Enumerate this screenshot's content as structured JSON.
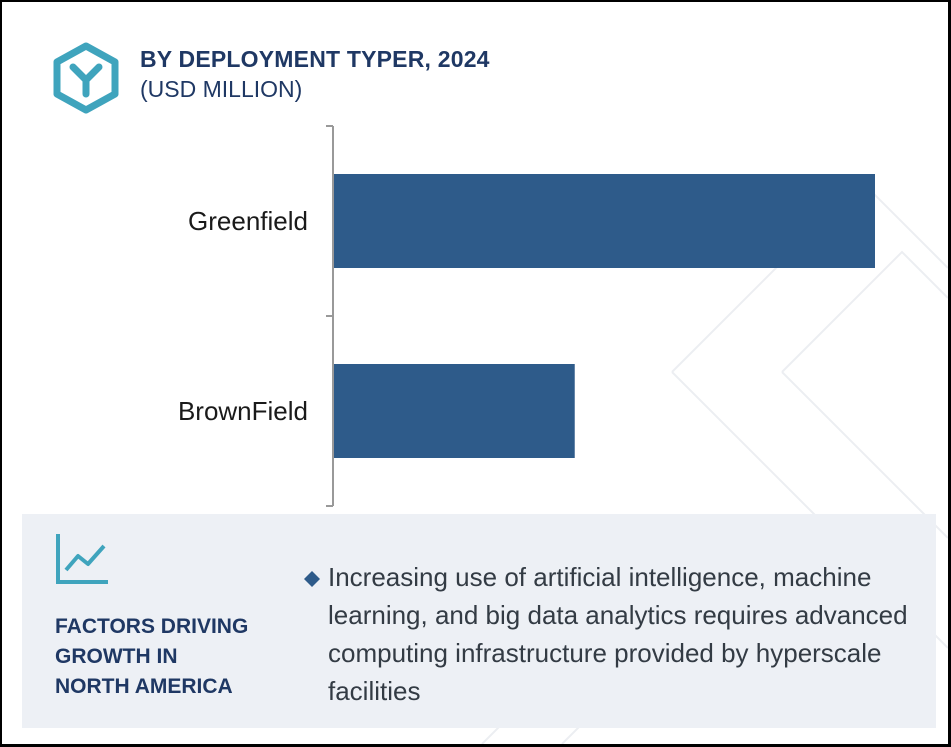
{
  "header": {
    "title": "BY DEPLOYMENT TYPER, 2024",
    "subtitle": "(USD MILLION)",
    "logo_icon": "hexagon-y-logo-icon"
  },
  "colors": {
    "bar": "#2e5b8a",
    "title": "#1f3864",
    "logo": "#3fa4bd",
    "panel_bg": "#edf0f5",
    "axis": "#999999"
  },
  "chart_data": {
    "type": "bar",
    "orientation": "horizontal",
    "categories": [
      "Greenfield",
      "BrownField"
    ],
    "values": [
      100,
      44.6
    ],
    "title": "BY DEPLOYMENT TYPER, 2024",
    "subtitle": "(USD MILLION)",
    "xlabel": "",
    "ylabel": "",
    "xlim": [
      0,
      100
    ],
    "grid": false,
    "legend": "none",
    "value_axis_labels": "hidden"
  },
  "factors": {
    "icon": "line-chart-icon",
    "heading_lines": [
      "FACTORS DRIVING",
      "GROWTH IN",
      "NORTH AMERICA"
    ],
    "bullet_icon": "diamond-bullet-icon",
    "text": "Increasing use of artificial intelligence, machine learning, and big data analytics requires advanced computing infrastructure provided by hyperscale facilities"
  }
}
